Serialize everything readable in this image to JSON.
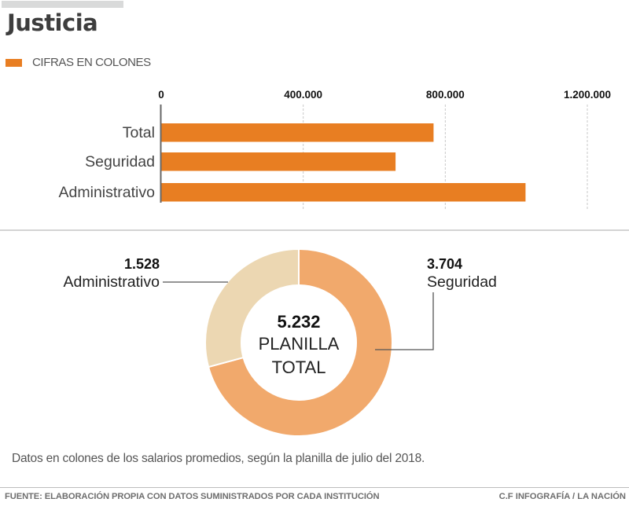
{
  "header": {
    "title": "Justicia",
    "legend_label": "CIFRAS EN COLONES"
  },
  "colors": {
    "bar": "#e87e22",
    "seguridad": "#f1a96c",
    "administrativo": "#ecd7b2",
    "axis": "#666666",
    "grid": "#c8c8c8"
  },
  "chart_data": [
    {
      "type": "bar",
      "orientation": "horizontal",
      "categories": [
        "Total",
        "Seguridad",
        "Administrativo"
      ],
      "values": [
        767000,
        660000,
        1026000
      ],
      "xlim": [
        0,
        1200000
      ],
      "xticks": [
        0,
        400000,
        800000,
        1200000
      ],
      "xtick_labels": [
        "0",
        "400.000",
        "800.000",
        "1.200.000"
      ],
      "grid": true,
      "legend": "top-left",
      "title": "",
      "xlabel": "",
      "ylabel": ""
    },
    {
      "type": "pie",
      "donut": true,
      "slices": [
        {
          "key": "seguridad",
          "label": "Seguridad",
          "value": 3704,
          "value_label": "3.704"
        },
        {
          "key": "administrativo",
          "label": "Administrativo",
          "value": 1528,
          "value_label": "1.528"
        }
      ],
      "center_value": "5.232",
      "center_label_1": "PLANILLA",
      "center_label_2": "TOTAL"
    }
  ],
  "note": "Datos en colones de los salarios promedios, según  la planilla de julio del 2018.",
  "footer": {
    "source": "FUENTE: ELABORACIÓN PROPIA CON DATOS SUMINISTRADOS POR CADA INSTITUCIÓN",
    "credit": "C.F INFOGRAFÍA / LA NACIÓN"
  }
}
